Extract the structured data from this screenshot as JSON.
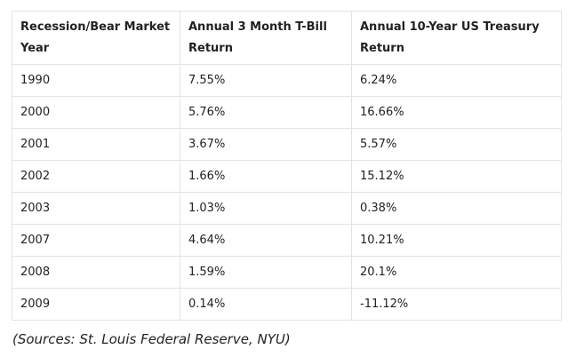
{
  "table": {
    "headers": [
      "Recession/Bear Market Year",
      "Annual 3 Month T-Bill Return",
      "Annual 10-Year US Treasury Return"
    ],
    "rows": [
      [
        "1990",
        "7.55%",
        "6.24%"
      ],
      [
        "2000",
        "5.76%",
        "16.66%"
      ],
      [
        "2001",
        "3.67%",
        "5.57%"
      ],
      [
        "2002",
        "1.66%",
        "15.12%"
      ],
      [
        "2003",
        "1.03%",
        "0.38%"
      ],
      [
        "2007",
        "4.64%",
        "10.21%"
      ],
      [
        "2008",
        "1.59%",
        "20.1%"
      ],
      [
        "2009",
        "0.14%",
        "-11.12%"
      ]
    ]
  },
  "source_note": "(Sources: St. Louis Federal Reserve, NYU)"
}
